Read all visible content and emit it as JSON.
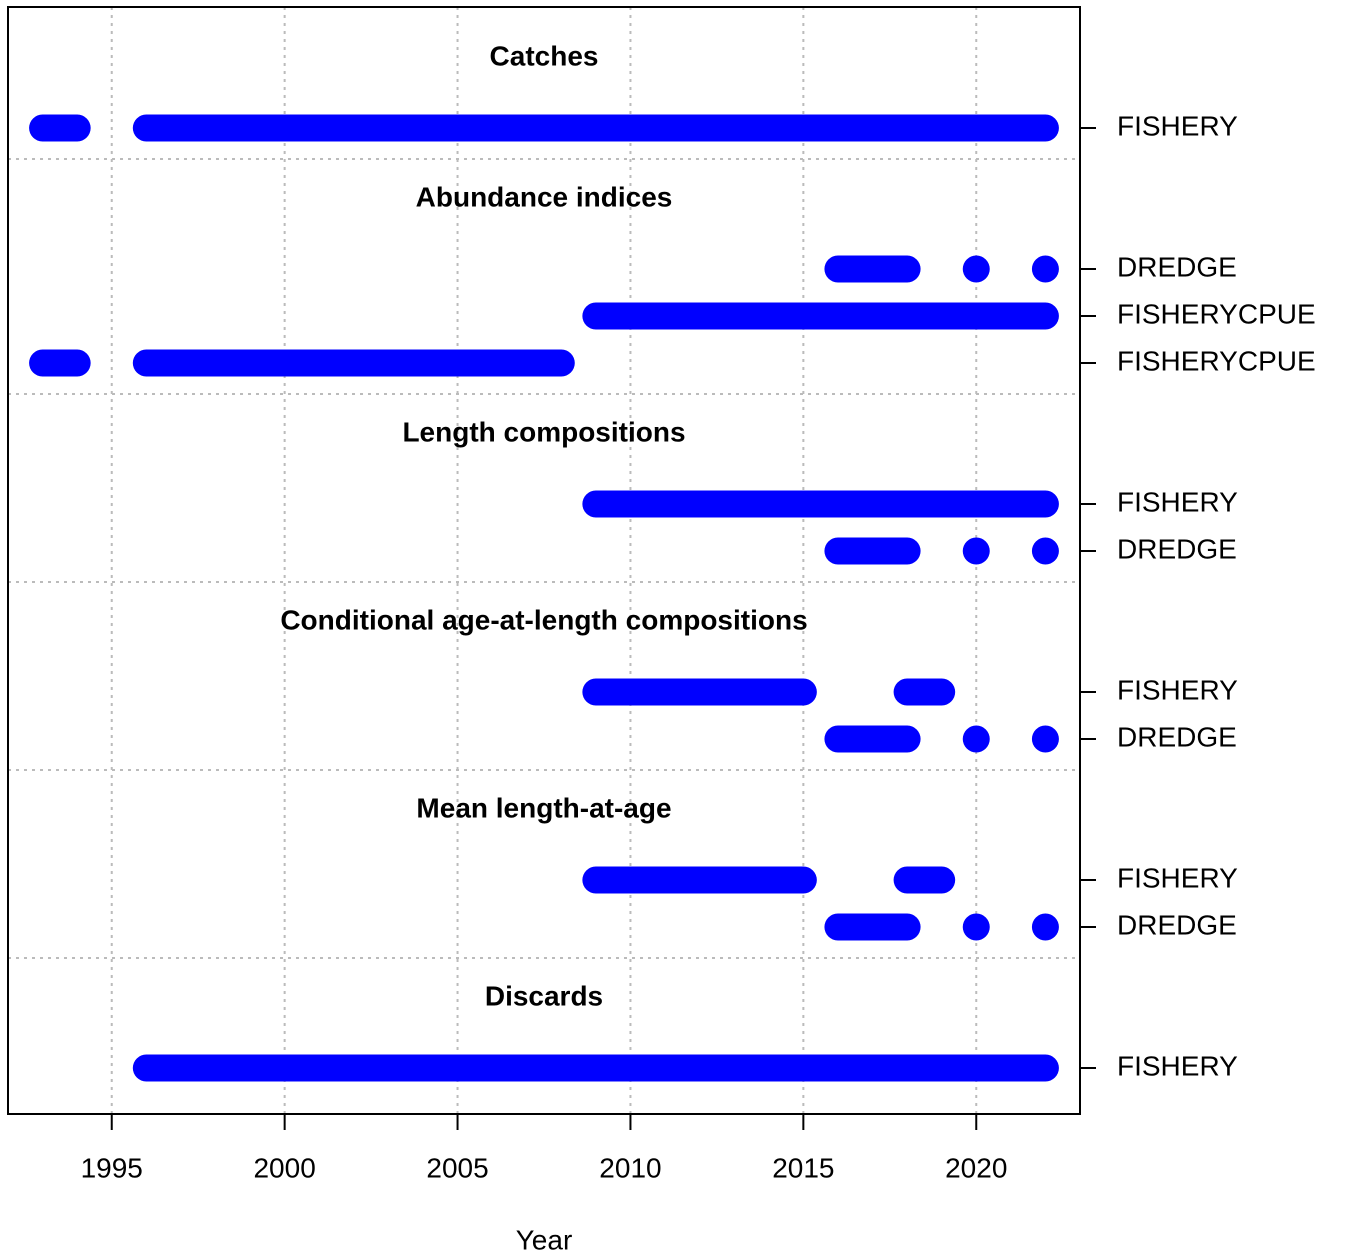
{
  "chart_data": {
    "type": "timeline",
    "xlabel": "Year",
    "xlim": [
      1992,
      2023
    ],
    "xticks": [
      1995,
      2000,
      2005,
      2010,
      2015,
      2020
    ],
    "grid": true,
    "color": "#0000ff",
    "sections": [
      {
        "title": "Catches",
        "rows": [
          {
            "label": "FISHERY",
            "segments": [
              [
                1993,
                1994
              ],
              [
                1996,
                2022
              ]
            ]
          }
        ]
      },
      {
        "title": "Abundance indices",
        "rows": [
          {
            "label": "DREDGE",
            "segments": [
              [
                2016,
                2018
              ],
              [
                2020,
                2020
              ],
              [
                2022,
                2022
              ]
            ]
          },
          {
            "label": "FISHERYCPUE",
            "segments": [
              [
                2009,
                2022
              ]
            ]
          },
          {
            "label": "FISHERYCPUE",
            "segments": [
              [
                1993,
                1994
              ],
              [
                1996,
                2008
              ]
            ]
          }
        ]
      },
      {
        "title": "Length compositions",
        "rows": [
          {
            "label": "FISHERY",
            "segments": [
              [
                2009,
                2022
              ]
            ]
          },
          {
            "label": "DREDGE",
            "segments": [
              [
                2016,
                2018
              ],
              [
                2020,
                2020
              ],
              [
                2022,
                2022
              ]
            ]
          }
        ]
      },
      {
        "title": "Conditional age-at-length compositions",
        "rows": [
          {
            "label": "FISHERY",
            "segments": [
              [
                2009,
                2015
              ],
              [
                2018,
                2019
              ]
            ]
          },
          {
            "label": "DREDGE",
            "segments": [
              [
                2016,
                2018
              ],
              [
                2020,
                2020
              ],
              [
                2022,
                2022
              ]
            ]
          }
        ]
      },
      {
        "title": "Mean length-at-age",
        "rows": [
          {
            "label": "FISHERY",
            "segments": [
              [
                2009,
                2015
              ],
              [
                2018,
                2019
              ]
            ]
          },
          {
            "label": "DREDGE",
            "segments": [
              [
                2016,
                2018
              ],
              [
                2020,
                2020
              ],
              [
                2022,
                2022
              ]
            ]
          }
        ]
      },
      {
        "title": "Discards",
        "rows": [
          {
            "label": "FISHERY",
            "segments": [
              [
                1996,
                2022
              ]
            ]
          }
        ]
      }
    ]
  }
}
